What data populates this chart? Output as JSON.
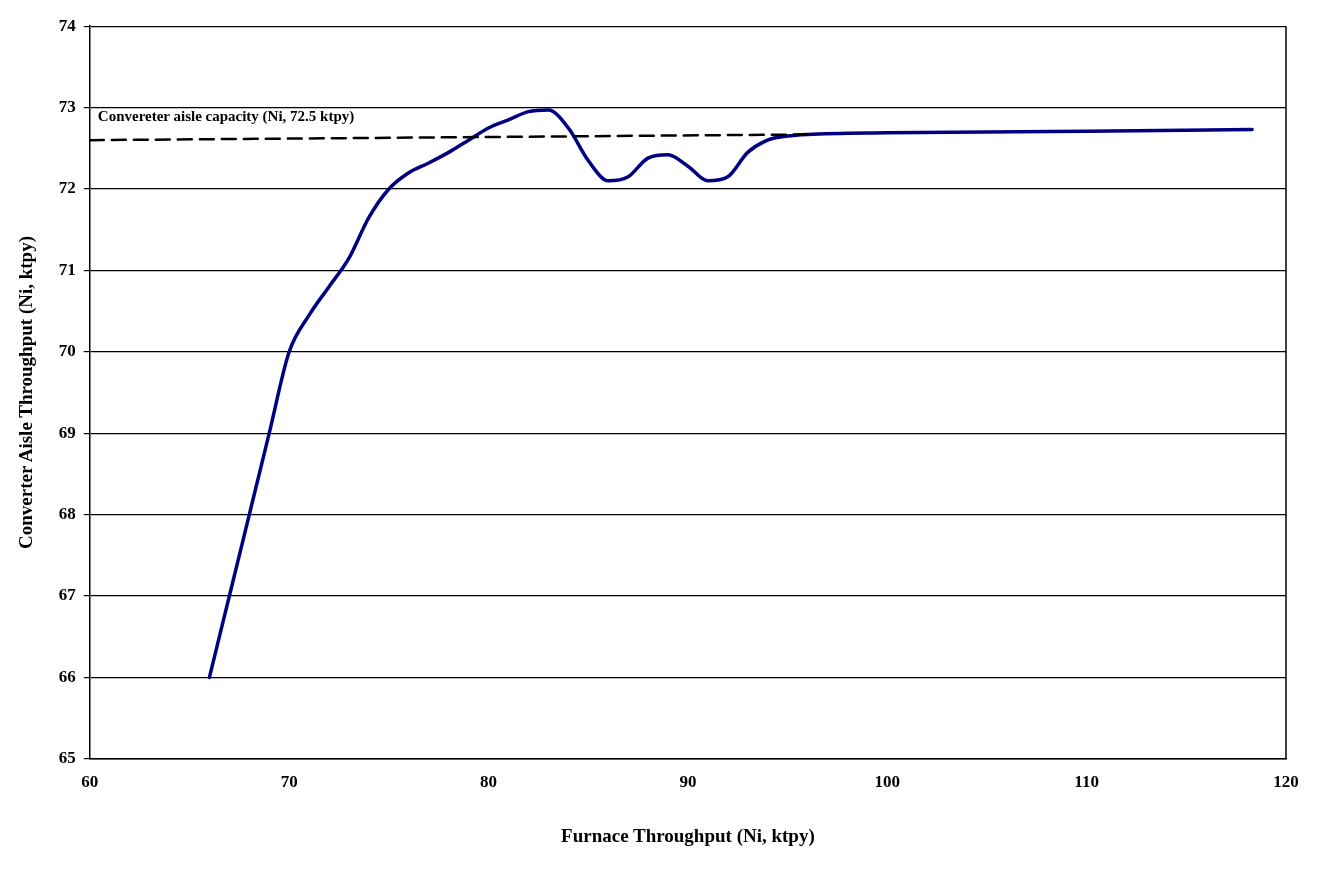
{
  "chart_data": {
    "type": "line",
    "xlabel": "Furnace Throughput (Ni, ktpy)",
    "ylabel": "Converter Aisle Throughput (Ni, ktpy)",
    "xlim": [
      60,
      120
    ],
    "xticks": [
      60,
      70,
      80,
      90,
      100,
      110,
      120
    ],
    "ylim": [
      65,
      74
    ],
    "yticks": [
      65,
      66,
      67,
      68,
      69,
      70,
      71,
      72,
      73,
      74
    ],
    "grid": "y",
    "legend": false,
    "marker": "none",
    "annotations": [
      "Convereter aisle capacity (Ni, 72.5 ktpy)"
    ],
    "series": [
      {
        "type": "line",
        "color": "#000080",
        "line_style": "solid",
        "x": [
          66,
          67,
          68,
          69,
          70,
          71,
          72,
          73,
          74,
          75,
          76,
          77,
          78,
          79,
          80,
          81,
          82,
          83,
          84,
          85,
          86,
          87,
          88,
          89,
          90,
          91,
          92,
          93,
          94,
          95,
          96,
          100,
          110,
          118.3
        ],
        "values": [
          66.0,
          67.0,
          68.0,
          69.0,
          70.0,
          70.45,
          70.8,
          71.15,
          71.65,
          72.0,
          72.2,
          72.32,
          72.45,
          72.6,
          72.75,
          72.85,
          72.95,
          72.97,
          72.75,
          72.35,
          72.1,
          72.15,
          72.38,
          72.42,
          72.28,
          72.1,
          72.15,
          72.45,
          72.6,
          72.65,
          72.67,
          72.69,
          72.71,
          72.73
        ]
      },
      {
        "type": "line",
        "color": "#000000",
        "line_style": "dashed",
        "x": [
          60,
          96
        ],
        "values": [
          72.6,
          72.67
        ]
      }
    ]
  }
}
